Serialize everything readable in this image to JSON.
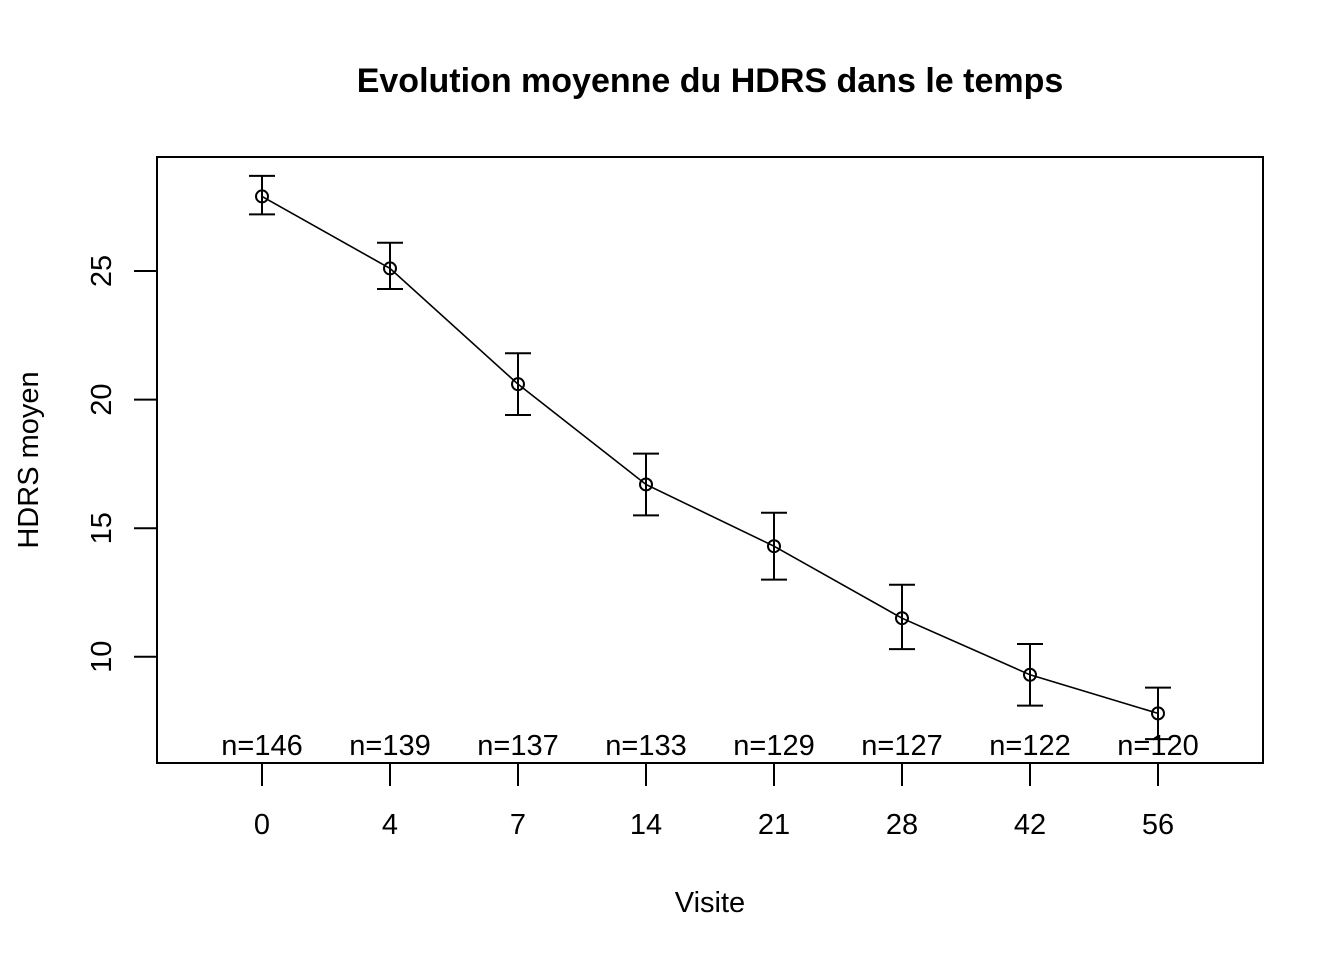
{
  "chart_data": {
    "type": "line",
    "title": "Evolution moyenne du HDRS dans le temps",
    "xlabel": "Visite",
    "ylabel": "HDRS moyen",
    "categories": [
      "0",
      "4",
      "7",
      "14",
      "21",
      "28",
      "42",
      "56"
    ],
    "series": [
      {
        "values": [
          27.9,
          25.1,
          20.6,
          16.7,
          14.3,
          11.5,
          9.3,
          7.8
        ],
        "lower": [
          27.2,
          24.3,
          19.4,
          15.5,
          13.0,
          10.3,
          8.1,
          6.8
        ],
        "upper": [
          28.7,
          26.1,
          21.8,
          17.9,
          15.6,
          12.8,
          10.5,
          8.8
        ]
      }
    ],
    "counts": [
      "n=146",
      "n=139",
      "n=137",
      "n=133",
      "n=129",
      "n=127",
      "n=122",
      "n=120"
    ],
    "yticks": [
      10,
      15,
      20,
      25
    ],
    "ylim": [
      6.5,
      30
    ],
    "grid": false,
    "legend": "none",
    "marker": "open-circle",
    "color": "#000000"
  }
}
